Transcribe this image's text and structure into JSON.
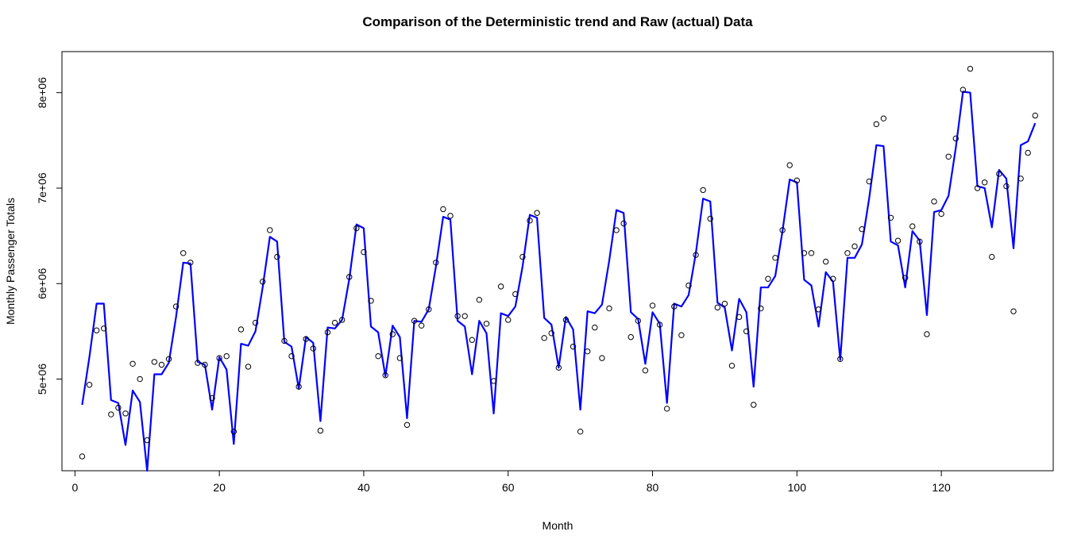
{
  "chart_data": {
    "type": "line",
    "title": "Comparison of the Deterministic trend and Raw (actual) Data",
    "xlabel": "Month",
    "ylabel": "Monthly Passenger Totals",
    "xlim": [
      -1.8,
      135.5
    ],
    "ylim": [
      4040000,
      8430000
    ],
    "x_ticks": [
      0,
      20,
      40,
      60,
      80,
      100,
      120
    ],
    "x_tick_labels": [
      "0",
      "20",
      "40",
      "60",
      "80",
      "100",
      "120"
    ],
    "y_ticks": [
      5000000,
      6000000,
      7000000,
      8000000
    ],
    "y_tick_labels": [
      "5e+06",
      "6e+06",
      "7e+06",
      "8e+06"
    ],
    "grid": false,
    "legend": "none",
    "series": [
      {
        "role": "trend-line",
        "color": "#0000ff",
        "x": [
          1,
          2,
          3,
          4,
          5,
          6,
          7,
          8,
          9,
          10,
          11,
          12,
          13,
          14,
          15,
          16,
          17,
          18,
          19,
          20,
          21,
          22,
          23,
          24,
          25,
          26,
          27,
          28,
          29,
          30,
          31,
          32,
          33,
          34,
          35,
          36,
          37,
          38,
          39,
          40,
          41,
          42,
          43,
          44,
          45,
          46,
          47,
          48,
          49,
          50,
          51,
          52,
          53,
          54,
          55,
          56,
          57,
          58,
          59,
          60,
          61,
          62,
          63,
          64,
          65,
          66,
          67,
          68,
          69,
          70,
          71,
          72,
          73,
          74,
          75,
          76,
          77,
          78,
          79,
          80,
          81,
          82,
          83,
          84,
          85,
          86,
          87,
          88,
          89,
          90,
          91,
          92,
          93,
          94,
          95,
          96,
          97,
          98,
          99,
          100,
          101,
          102,
          103,
          104,
          105,
          106,
          107,
          108,
          109,
          110,
          111,
          112,
          113,
          114,
          115,
          116,
          117,
          118,
          119,
          120,
          121,
          122,
          123,
          124,
          125,
          126,
          127,
          128,
          129,
          130,
          131,
          132,
          133
        ],
        "values": [
          4730000,
          5230000,
          5790000,
          5790000,
          4780000,
          4750000,
          4310000,
          4880000,
          4760000,
          4030000,
          5050000,
          5050000,
          5170000,
          5650000,
          6220000,
          6210000,
          5180000,
          5150000,
          4680000,
          5230000,
          5100000,
          4320000,
          5370000,
          5350000,
          5500000,
          5960000,
          6490000,
          6440000,
          5390000,
          5340000,
          4900000,
          5440000,
          5380000,
          4560000,
          5540000,
          5530000,
          5620000,
          6050000,
          6620000,
          6580000,
          5550000,
          5490000,
          5030000,
          5560000,
          5440000,
          4590000,
          5610000,
          5600000,
          5730000,
          6180000,
          6700000,
          6670000,
          5610000,
          5550000,
          5050000,
          5610000,
          5480000,
          4640000,
          5690000,
          5660000,
          5760000,
          6180000,
          6720000,
          6690000,
          5640000,
          5570000,
          5120000,
          5650000,
          5520000,
          4680000,
          5710000,
          5690000,
          5780000,
          6240000,
          6770000,
          6740000,
          5700000,
          5630000,
          5160000,
          5700000,
          5580000,
          4750000,
          5790000,
          5760000,
          5880000,
          6320000,
          6890000,
          6860000,
          5800000,
          5750000,
          5300000,
          5840000,
          5700000,
          4920000,
          5960000,
          5960000,
          6080000,
          6550000,
          7090000,
          7060000,
          6040000,
          5980000,
          5550000,
          6120000,
          6020000,
          5200000,
          6270000,
          6270000,
          6410000,
          6890000,
          7450000,
          7440000,
          6440000,
          6400000,
          5960000,
          6550000,
          6450000,
          5670000,
          6750000,
          6770000,
          6920000,
          7420000,
          8010000,
          8000000,
          7020000,
          7000000,
          6590000,
          7190000,
          7100000,
          6370000,
          7450000,
          7490000,
          7680000
        ]
      },
      {
        "role": "raw-points",
        "color": "#000000",
        "x": [
          1,
          2,
          3,
          4,
          5,
          6,
          7,
          8,
          9,
          10,
          11,
          12,
          13,
          14,
          15,
          16,
          17,
          18,
          19,
          20,
          21,
          22,
          23,
          24,
          25,
          26,
          27,
          28,
          29,
          30,
          31,
          32,
          33,
          34,
          35,
          36,
          37,
          38,
          39,
          40,
          41,
          42,
          43,
          44,
          45,
          46,
          47,
          48,
          49,
          50,
          51,
          52,
          53,
          54,
          55,
          56,
          57,
          58,
          59,
          60,
          61,
          62,
          63,
          64,
          65,
          66,
          67,
          68,
          69,
          70,
          71,
          72,
          73,
          74,
          75,
          76,
          77,
          78,
          79,
          80,
          81,
          82,
          83,
          84,
          85,
          86,
          87,
          88,
          89,
          90,
          91,
          92,
          93,
          94,
          95,
          96,
          97,
          98,
          99,
          100,
          101,
          102,
          103,
          104,
          105,
          106,
          107,
          108,
          109,
          110,
          111,
          112,
          113,
          114,
          115,
          116,
          117,
          118,
          119,
          120,
          121,
          122,
          123,
          124,
          125,
          126,
          127,
          128,
          129,
          130,
          131,
          132,
          133
        ],
        "values": [
          4190000,
          4940000,
          5510000,
          5530000,
          4630000,
          4700000,
          4640000,
          5160000,
          5000000,
          4360000,
          5180000,
          5150000,
          5210000,
          5760000,
          6320000,
          6220000,
          5170000,
          5150000,
          4800000,
          5220000,
          5240000,
          4450000,
          5520000,
          5130000,
          5590000,
          6020000,
          6560000,
          6280000,
          5400000,
          5240000,
          4920000,
          5420000,
          5320000,
          4460000,
          5490000,
          5590000,
          5620000,
          6070000,
          6580000,
          6330000,
          5820000,
          5240000,
          5040000,
          5470000,
          5220000,
          4520000,
          5610000,
          5560000,
          5730000,
          6220000,
          6780000,
          6710000,
          5660000,
          5660000,
          5410000,
          5830000,
          5580000,
          4980000,
          5970000,
          5620000,
          5890000,
          6280000,
          6660000,
          6740000,
          5430000,
          5480000,
          5120000,
          5620000,
          5340000,
          4450000,
          5290000,
          5540000,
          5220000,
          5740000,
          6560000,
          6630000,
          5440000,
          5610000,
          5090000,
          5770000,
          5570000,
          4690000,
          5760000,
          5460000,
          5980000,
          6300000,
          6980000,
          6680000,
          5750000,
          5790000,
          5140000,
          5650000,
          5500000,
          4730000,
          5740000,
          6050000,
          6270000,
          6560000,
          7240000,
          7080000,
          6320000,
          6320000,
          5730000,
          6230000,
          6050000,
          5210000,
          6320000,
          6390000,
          6570000,
          7070000,
          7670000,
          7730000,
          6690000,
          6450000,
          6060000,
          6600000,
          6440000,
          5470000,
          6860000,
          6730000,
          7330000,
          7520000,
          8030000,
          8250000,
          7000000,
          7060000,
          6280000,
          7150000,
          7020000,
          5710000,
          7100000,
          7370000,
          7760000
        ]
      }
    ]
  }
}
